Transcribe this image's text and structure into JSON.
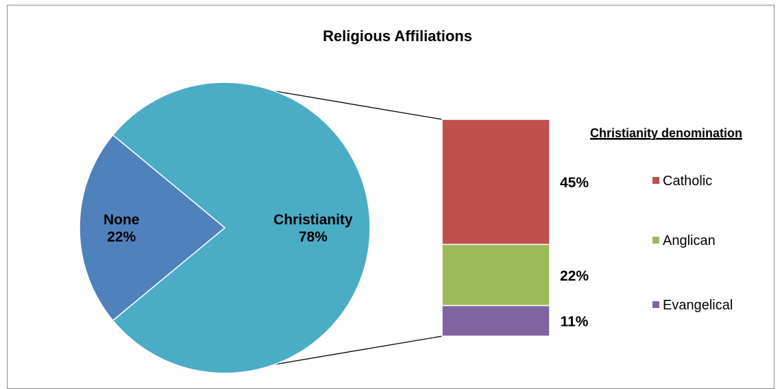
{
  "chart_data": {
    "type": "bar-of-pie",
    "title": "Religious Affiliations",
    "pie": {
      "slices": [
        {
          "label": "Christianity",
          "value": 78,
          "value_label": "78%",
          "color": "#4bacc6"
        },
        {
          "label": "None",
          "value": 22,
          "value_label": "22%",
          "color": "#4f81bd"
        }
      ]
    },
    "bar": {
      "title": "Christianity denomination",
      "segments": [
        {
          "label": "Catholic",
          "value": 45,
          "value_label": "45%",
          "color": "#c0504d"
        },
        {
          "label": "Anglican",
          "value": 22,
          "value_label": "22%",
          "color": "#9bbb59"
        },
        {
          "label": "Evangelical",
          "value": 11,
          "value_label": "11%",
          "color": "#8064a2"
        }
      ]
    },
    "legend": {
      "position": "right"
    }
  }
}
